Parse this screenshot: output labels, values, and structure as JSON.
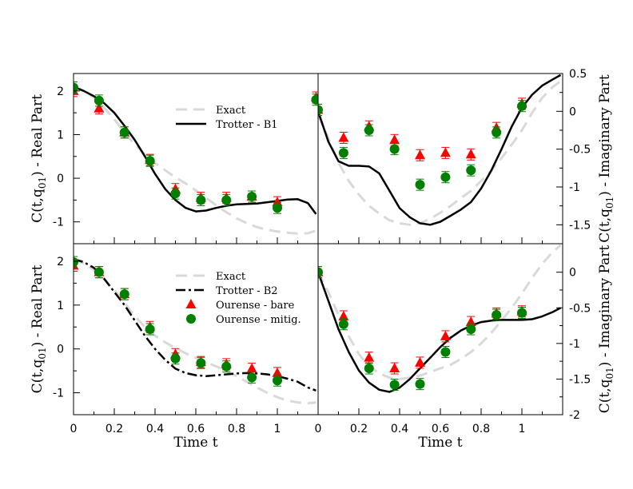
{
  "chart_data": [
    {
      "panel": "top-left",
      "type": "line",
      "ylabel": "C(t,q01) - Real Part",
      "xlabel": "",
      "ylim": [
        -1.5,
        2.4
      ],
      "yticks": [
        -1,
        0,
        1,
        2
      ],
      "xlim": [
        0,
        1.2
      ],
      "legend": [
        "Exact",
        "Trotter - B1"
      ],
      "series": [
        {
          "name": "Exact",
          "style": "dashed-gray",
          "x": [
            0,
            0.05,
            0.1,
            0.15,
            0.2,
            0.25,
            0.3,
            0.35,
            0.4,
            0.45,
            0.5,
            0.55,
            0.6,
            0.65,
            0.7,
            0.75,
            0.8,
            0.85,
            0.9,
            0.95,
            1.0,
            1.05,
            1.1,
            1.15,
            1.19
          ],
          "y": [
            2.08,
            2.0,
            1.85,
            1.62,
            1.35,
            1.05,
            0.78,
            0.55,
            0.35,
            0.18,
            0.02,
            -0.12,
            -0.28,
            -0.45,
            -0.62,
            -0.78,
            -0.92,
            -1.03,
            -1.12,
            -1.18,
            -1.22,
            -1.25,
            -1.27,
            -1.26,
            -1.2
          ]
        },
        {
          "name": "Trotter - B1",
          "style": "solid-black",
          "x": [
            0,
            0.05,
            0.1,
            0.15,
            0.2,
            0.25,
            0.3,
            0.35,
            0.4,
            0.45,
            0.5,
            0.55,
            0.6,
            0.65,
            0.7,
            0.75,
            0.8,
            0.85,
            0.9,
            0.95,
            1.0,
            1.05,
            1.1,
            1.15,
            1.19
          ],
          "y": [
            2.1,
            2.0,
            1.88,
            1.72,
            1.5,
            1.2,
            0.88,
            0.5,
            0.1,
            -0.25,
            -0.5,
            -0.68,
            -0.76,
            -0.74,
            -0.68,
            -0.63,
            -0.6,
            -0.59,
            -0.58,
            -0.55,
            -0.52,
            -0.49,
            -0.48,
            -0.57,
            -0.82
          ]
        },
        {
          "name": "Ourense - bare",
          "style": "red-triangle",
          "x": [
            0,
            0.125,
            0.25,
            0.375,
            0.5,
            0.625,
            0.75,
            0.875,
            1.0,
            1.19
          ],
          "y": [
            2.0,
            1.6,
            1.05,
            0.42,
            -0.25,
            -0.45,
            -0.45,
            -0.42,
            -0.55,
            1.85
          ]
        },
        {
          "name": "Ourense - mitig.",
          "style": "green-circle",
          "x": [
            0,
            0.125,
            0.25,
            0.375,
            0.5,
            0.625,
            0.75,
            0.875,
            1.0,
            1.19
          ],
          "y": [
            2.08,
            1.78,
            1.05,
            0.4,
            -0.35,
            -0.5,
            -0.5,
            -0.42,
            -0.68,
            1.8
          ]
        }
      ]
    },
    {
      "panel": "top-right",
      "type": "line",
      "ylabel": "C(t,q01) - Imaginary Part",
      "xlabel": "",
      "ylim": [
        -1.75,
        0.5
      ],
      "yticks": [
        -1.5,
        -1,
        -0.5,
        0,
        0.5
      ],
      "xlim": [
        0,
        1.2
      ],
      "series": [
        {
          "name": "Exact",
          "style": "dashed-gray",
          "x": [
            0,
            0.05,
            0.1,
            0.15,
            0.2,
            0.25,
            0.3,
            0.35,
            0.4,
            0.45,
            0.5,
            0.55,
            0.6,
            0.65,
            0.7,
            0.75,
            0.8,
            0.85,
            0.9,
            0.95,
            1.0,
            1.05,
            1.1,
            1.15,
            1.19
          ],
          "y": [
            -0.05,
            -0.35,
            -0.68,
            -0.92,
            -1.1,
            -1.25,
            -1.35,
            -1.44,
            -1.48,
            -1.5,
            -1.48,
            -1.42,
            -1.34,
            -1.25,
            -1.15,
            -1.05,
            -0.92,
            -0.78,
            -0.62,
            -0.44,
            -0.25,
            -0.02,
            0.18,
            0.32,
            0.4
          ]
        },
        {
          "name": "Trotter - B1",
          "style": "solid-black",
          "x": [
            0,
            0.05,
            0.1,
            0.15,
            0.2,
            0.25,
            0.3,
            0.35,
            0.4,
            0.45,
            0.5,
            0.55,
            0.6,
            0.65,
            0.7,
            0.75,
            0.8,
            0.85,
            0.9,
            0.95,
            1.0,
            1.05,
            1.1,
            1.15,
            1.19
          ],
          "y": [
            0.0,
            -0.4,
            -0.66,
            -0.72,
            -0.72,
            -0.73,
            -0.82,
            -1.05,
            -1.28,
            -1.4,
            -1.48,
            -1.5,
            -1.46,
            -1.38,
            -1.3,
            -1.2,
            -1.02,
            -0.78,
            -0.5,
            -0.2,
            0.05,
            0.22,
            0.34,
            0.42,
            0.48
          ]
        },
        {
          "name": "Ourense - bare",
          "style": "red-triangle",
          "x": [
            0,
            0.125,
            0.25,
            0.375,
            0.5,
            0.625,
            0.75,
            0.875,
            1.0
          ],
          "y": [
            0.02,
            -0.35,
            -0.2,
            -0.38,
            -0.58,
            -0.55,
            -0.57,
            -0.22,
            0.1
          ]
        },
        {
          "name": "Ourense - mitig.",
          "style": "green-circle",
          "x": [
            0,
            0.125,
            0.25,
            0.375,
            0.5,
            0.625,
            0.75,
            0.875,
            1.0
          ],
          "y": [
            0.02,
            -0.55,
            -0.25,
            -0.5,
            -0.97,
            -0.87,
            -0.78,
            -0.28,
            0.07
          ]
        }
      ]
    },
    {
      "panel": "bottom-left",
      "type": "line",
      "ylabel": "C(t,q01) - Real Part",
      "xlabel": "Time t",
      "ylim": [
        -1.5,
        2.4
      ],
      "yticks": [
        -1,
        0,
        1,
        2
      ],
      "xlim": [
        0,
        1.2
      ],
      "xticks": [
        0,
        0.2,
        0.4,
        0.6,
        0.8,
        1
      ],
      "legend": [
        "Exact",
        "Trotter - B2",
        "Ourense - bare",
        "Ourense - mitig."
      ],
      "series": [
        {
          "name": "Exact",
          "style": "dashed-gray",
          "x": [
            0,
            0.05,
            0.1,
            0.15,
            0.2,
            0.25,
            0.3,
            0.35,
            0.4,
            0.45,
            0.5,
            0.55,
            0.6,
            0.65,
            0.7,
            0.75,
            0.8,
            0.85,
            0.9,
            0.95,
            1.0,
            1.05,
            1.1,
            1.15,
            1.19
          ],
          "y": [
            2.05,
            1.95,
            1.8,
            1.6,
            1.35,
            1.05,
            0.75,
            0.5,
            0.3,
            0.15,
            0.02,
            -0.1,
            -0.2,
            -0.3,
            -0.4,
            -0.5,
            -0.62,
            -0.75,
            -0.88,
            -1.0,
            -1.1,
            -1.18,
            -1.22,
            -1.24,
            -1.22
          ]
        },
        {
          "name": "Trotter - B2",
          "style": "dashdot-black",
          "x": [
            0,
            0.05,
            0.1,
            0.15,
            0.2,
            0.25,
            0.3,
            0.35,
            0.4,
            0.45,
            0.5,
            0.55,
            0.6,
            0.65,
            0.7,
            0.75,
            0.8,
            0.85,
            0.9,
            0.95,
            1.0,
            1.05,
            1.1,
            1.15,
            1.19
          ],
          "y": [
            2.05,
            1.98,
            1.85,
            1.6,
            1.3,
            1.0,
            0.65,
            0.3,
            0.0,
            -0.25,
            -0.45,
            -0.55,
            -0.6,
            -0.62,
            -0.6,
            -0.58,
            -0.56,
            -0.55,
            -0.56,
            -0.58,
            -0.62,
            -0.68,
            -0.75,
            -0.88,
            -0.95
          ]
        },
        {
          "name": "Ourense - bare",
          "style": "red-triangle",
          "x": [
            0,
            0.125,
            0.25,
            0.375,
            0.5,
            0.625,
            0.75,
            0.875,
            1.0
          ],
          "y": [
            1.9,
            1.75,
            1.25,
            0.5,
            -0.12,
            -0.3,
            -0.35,
            -0.45,
            -0.55
          ]
        },
        {
          "name": "Ourense - mitig.",
          "style": "green-circle",
          "x": [
            0,
            0.125,
            0.25,
            0.375,
            0.5,
            0.625,
            0.75,
            0.875,
            1.0
          ],
          "y": [
            1.98,
            1.75,
            1.25,
            0.45,
            -0.22,
            -0.32,
            -0.4,
            -0.65,
            -0.72
          ]
        }
      ]
    },
    {
      "panel": "bottom-right",
      "type": "line",
      "ylabel": "C(t,q01) - Imaginary Part",
      "xlabel": "Time t",
      "ylim": [
        -2,
        0.4
      ],
      "yticks": [
        -2,
        -1.5,
        -1,
        -0.5,
        0
      ],
      "xlim": [
        0,
        1.2
      ],
      "xticks": [
        0,
        0.2,
        0.4,
        0.6,
        0.8,
        1
      ],
      "series": [
        {
          "name": "Exact",
          "style": "dashed-gray",
          "x": [
            0,
            0.05,
            0.1,
            0.15,
            0.2,
            0.25,
            0.3,
            0.35,
            0.4,
            0.45,
            0.5,
            0.55,
            0.6,
            0.65,
            0.7,
            0.75,
            0.8,
            0.85,
            0.9,
            0.95,
            1.0,
            1.05,
            1.1,
            1.15,
            1.19
          ],
          "y": [
            0.0,
            -0.28,
            -0.6,
            -0.9,
            -1.15,
            -1.32,
            -1.42,
            -1.48,
            -1.5,
            -1.48,
            -1.45,
            -1.4,
            -1.35,
            -1.3,
            -1.22,
            -1.12,
            -1.0,
            -0.85,
            -0.68,
            -0.5,
            -0.3,
            -0.08,
            0.12,
            0.28,
            0.38
          ]
        },
        {
          "name": "Trotter - B1",
          "style": "solid-black",
          "x": [
            0,
            0.05,
            0.1,
            0.15,
            0.2,
            0.25,
            0.3,
            0.35,
            0.4,
            0.45,
            0.5,
            0.55,
            0.6,
            0.65,
            0.7,
            0.75,
            0.8,
            0.85,
            0.9,
            0.95,
            1.0,
            1.05,
            1.1,
            1.15,
            1.19
          ],
          "y": [
            0.0,
            -0.4,
            -0.8,
            -1.12,
            -1.38,
            -1.55,
            -1.65,
            -1.68,
            -1.62,
            -1.5,
            -1.35,
            -1.2,
            -1.05,
            -0.92,
            -0.82,
            -0.75,
            -0.7,
            -0.68,
            -0.67,
            -0.67,
            -0.67,
            -0.66,
            -0.62,
            -0.56,
            -0.5
          ]
        },
        {
          "name": "Ourense - bare",
          "style": "red-triangle",
          "x": [
            0,
            0.125,
            0.25,
            0.375,
            0.5,
            0.625,
            0.75,
            0.875,
            1.0
          ],
          "y": [
            0.0,
            -0.62,
            -1.2,
            -1.35,
            -1.27,
            -0.9,
            -0.7,
            -0.58,
            -0.55
          ]
        },
        {
          "name": "Ourense - mitig.",
          "style": "green-circle",
          "x": [
            0,
            0.125,
            0.25,
            0.375,
            0.5,
            0.625,
            0.75,
            0.875,
            1.0
          ],
          "y": [
            0.0,
            -0.73,
            -1.35,
            -1.58,
            -1.57,
            -1.12,
            -0.8,
            -0.6,
            -0.57
          ]
        }
      ]
    }
  ],
  "colors": {
    "exact": "#d9d9d9",
    "trotter": "#000000",
    "bare": "#ff0000",
    "mitig": "#008000"
  },
  "labels": {
    "xlabel": "Time t",
    "real_part": "C(t,q",
    "real_sub": "01",
    "real_suffix": ") - Real Part",
    "imag_suffix": ") - Imaginary Part"
  }
}
